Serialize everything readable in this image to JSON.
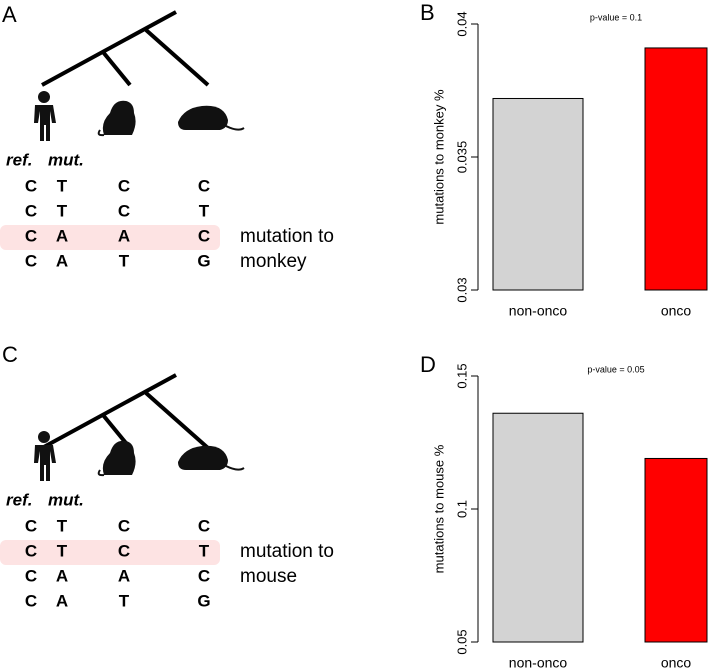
{
  "diagrams": [
    {
      "panel_label": "A",
      "column_headers": [
        "ref.",
        "mut."
      ],
      "rows": [
        [
          "C",
          "T",
          "C",
          "C"
        ],
        [
          "C",
          "T",
          "C",
          "T"
        ],
        [
          "C",
          "A",
          "A",
          "C"
        ],
        [
          "C",
          "A",
          "T",
          "G"
        ]
      ],
      "highlight_row": 2,
      "highlight_label": [
        "mutation to",
        "monkey"
      ]
    },
    {
      "panel_label": "C",
      "column_headers": [
        "ref.",
        "mut."
      ],
      "rows": [
        [
          "C",
          "T",
          "C",
          "C"
        ],
        [
          "C",
          "T",
          "C",
          "T"
        ],
        [
          "C",
          "A",
          "A",
          "C"
        ],
        [
          "C",
          "A",
          "T",
          "G"
        ]
      ],
      "highlight_row": 1,
      "highlight_label": [
        "mutation to",
        "mouse"
      ]
    }
  ],
  "chart_data": [
    {
      "type": "bar",
      "panel_label": "B",
      "annotation": "p-value = 0.1",
      "ylabel": "mutations to monkey %",
      "categories": [
        "non-onco",
        "onco"
      ],
      "values": [
        0.0372,
        0.0391
      ],
      "colors": [
        "#d3d3d3",
        "#ff0000"
      ],
      "ylim": [
        0.03,
        0.04
      ],
      "yticks": [
        0.03,
        0.035,
        0.04
      ]
    },
    {
      "type": "bar",
      "panel_label": "D",
      "annotation": "p-value = 0.05",
      "ylabel": "mutations to mouse %",
      "categories": [
        "non-onco",
        "onco"
      ],
      "values": [
        0.136,
        0.119
      ],
      "colors": [
        "#d3d3d3",
        "#ff0000"
      ],
      "ylim": [
        0.05,
        0.15
      ],
      "yticks": [
        0.05,
        0.1,
        0.15
      ]
    }
  ]
}
